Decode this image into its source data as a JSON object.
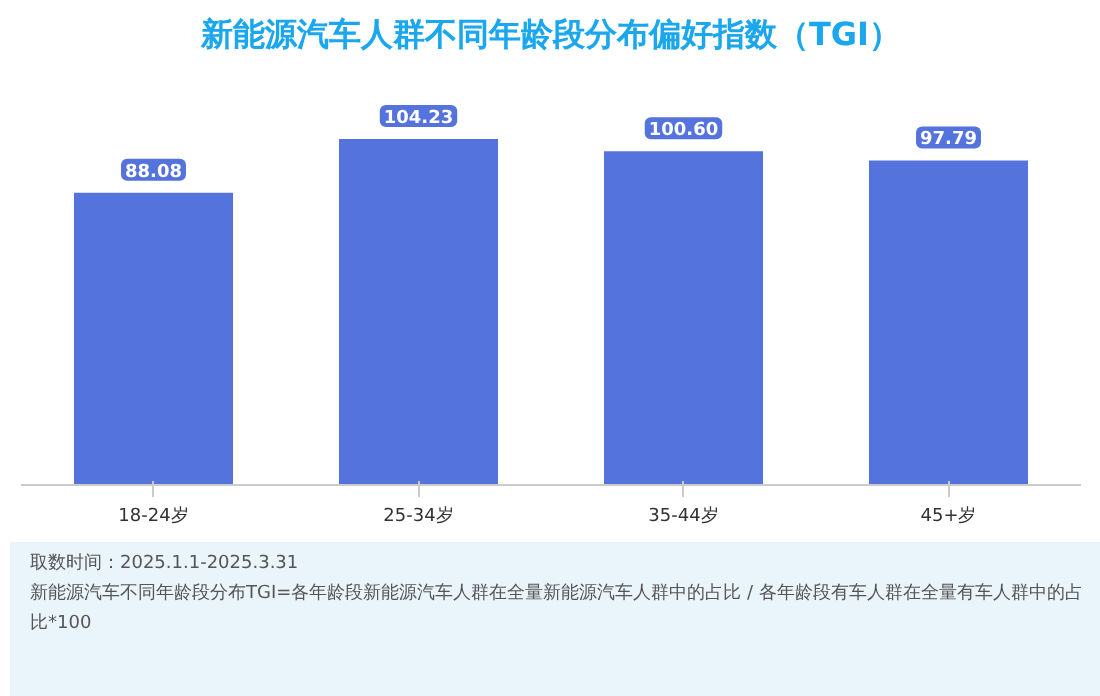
{
  "chart_data": {
    "type": "bar",
    "title": "新能源汽车人群不同年龄段分布偏好指数（TGI）",
    "categories": [
      "18-24岁",
      "25-34岁",
      "35-44岁",
      "45+岁"
    ],
    "values": [
      88.08,
      104.23,
      100.6,
      97.79
    ],
    "value_labels": [
      "88.08",
      "104.23",
      "100.60",
      "97.79"
    ],
    "color": "#5573dc",
    "grid": false,
    "annotations": [
      "取数时间：2025.1.1-2025.3.31",
      "新能源汽车不同年龄段分布TGI=各年龄段新能源汽车人群在全量新能源汽车人群中的占比 / 各年龄段有车人群在全量有车人群中的占比*100"
    ]
  }
}
